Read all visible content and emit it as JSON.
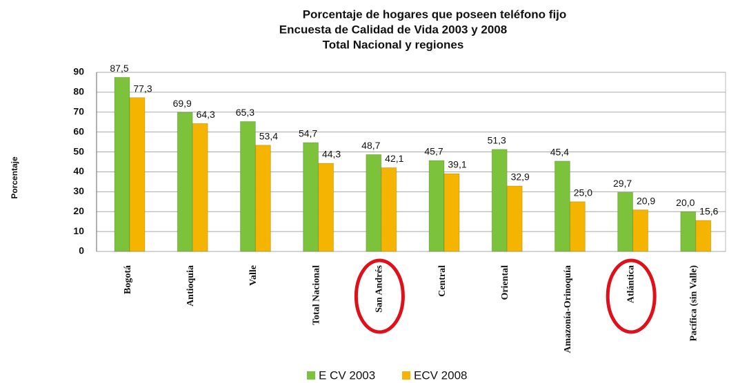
{
  "chart_data": {
    "type": "bar",
    "title": "Porcentaje de hogares que poseen teléfono fijo",
    "subtitle": [
      "Encuesta de Calidad de Vida 2003 y 2008",
      "Total Nacional y regiones"
    ],
    "y_label": "Porcentaje",
    "categories": [
      "Bogotá",
      "Antioquia",
      "Valle",
      "Total Nacional",
      "San Andrés",
      "Central",
      "Oriental",
      "Amazonía-Orinoquía",
      "Atlántica",
      "Pacífica (sin Valle)"
    ],
    "series": [
      {
        "name": "E CV 2003",
        "color": "#7cc23a",
        "values": [
          87.5,
          69.9,
          65.3,
          54.7,
          48.7,
          45.7,
          51.3,
          45.4,
          29.7,
          20.0
        ],
        "value_labels": [
          "87,5",
          "69,9",
          "65,3",
          "54,7",
          "48,7",
          "45,7",
          "51,3",
          "45,4",
          "29,7",
          "20,0"
        ]
      },
      {
        "name": "ECV 2008",
        "color": "#f5b400",
        "values": [
          77.3,
          64.3,
          53.4,
          44.3,
          42.1,
          39.1,
          32.9,
          25.0,
          20.9,
          15.6
        ],
        "value_labels": [
          "77,3",
          "64,3",
          "53,4",
          "44,3",
          "42,1",
          "39,1",
          "32,9",
          "25,0",
          "20,9",
          "15,6"
        ]
      }
    ],
    "ylim": [
      0,
      90
    ],
    "yticks": [
      0,
      10,
      20,
      30,
      40,
      50,
      60,
      70,
      80,
      90
    ],
    "grid": true,
    "legend": "bottom"
  }
}
